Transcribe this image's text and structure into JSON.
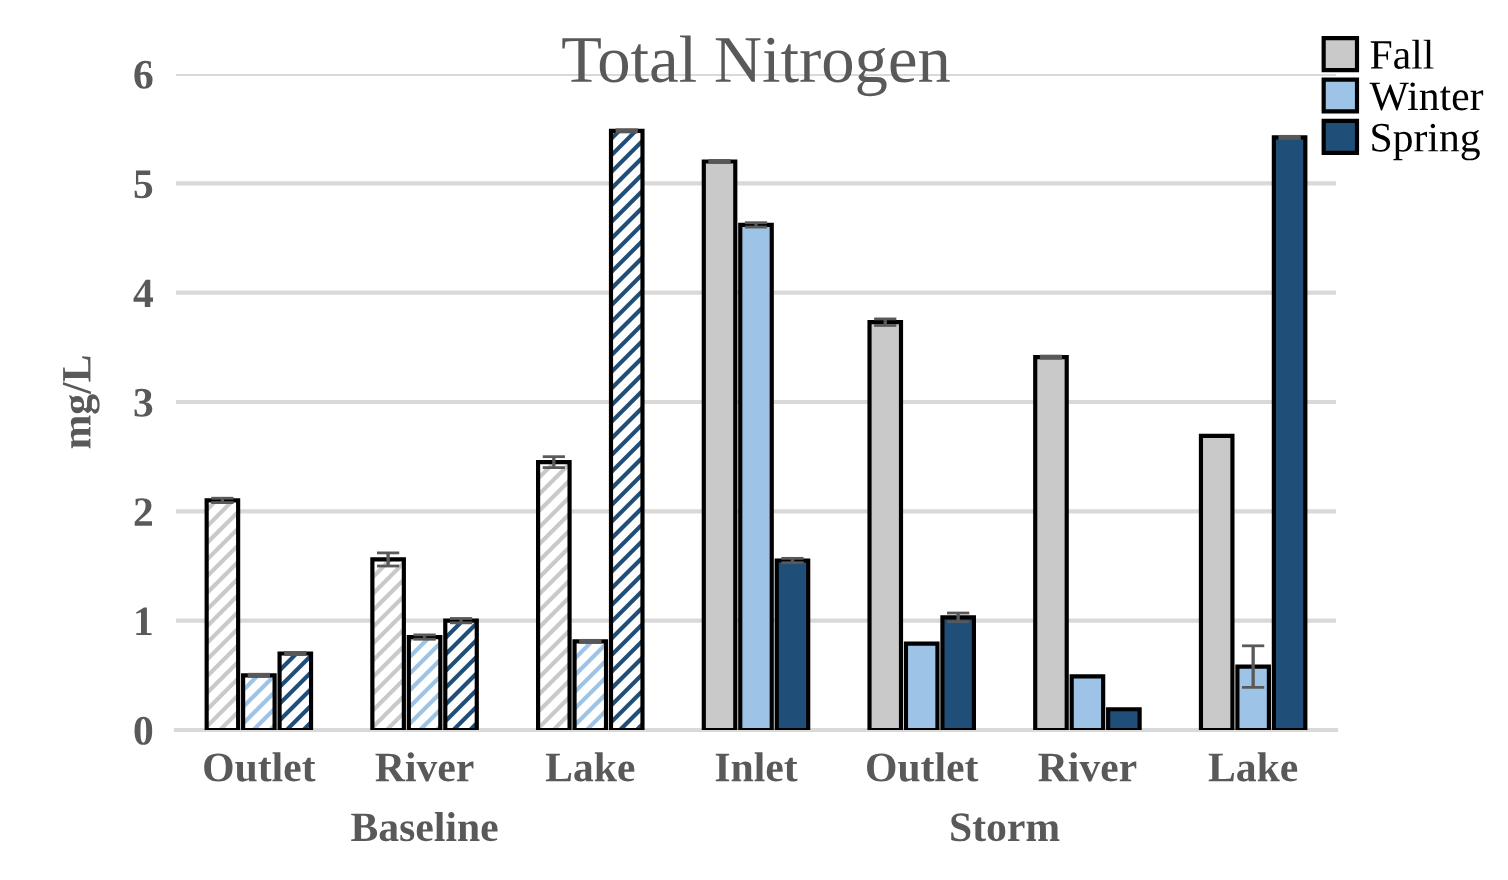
{
  "chart_data": {
    "type": "bar",
    "title": "Total Nitrogen",
    "ylabel": "mg/L",
    "categories": [
      "Outlet",
      "River",
      "Lake",
      "Inlet",
      "Outlet",
      "River",
      "Lake"
    ],
    "series": [
      {
        "name": "Fall",
        "color": "#c9c9c9",
        "values": [
          2.1,
          1.56,
          2.45,
          5.2,
          3.73,
          3.41,
          2.69
        ],
        "errors": [
          0.02,
          0.06,
          0.05,
          0.01,
          0.03,
          0.01,
          null
        ]
      },
      {
        "name": "Winter",
        "color": "#9dc3e6",
        "values": [
          0.5,
          0.85,
          0.81,
          4.62,
          0.79,
          0.49,
          0.58
        ],
        "errors": [
          0.01,
          0.02,
          0.01,
          0.02,
          null,
          null,
          0.19
        ]
      },
      {
        "name": "Spring",
        "color": "#1f4e79",
        "values": [
          0.7,
          1.0,
          5.48,
          1.55,
          1.03,
          0.19,
          5.42
        ],
        "errors": [
          0.01,
          0.02,
          0.01,
          0.02,
          0.04,
          null,
          0.01
        ]
      }
    ],
    "annotations": [
      "Baseline",
      "Storm"
    ],
    "ylim": [
      0,
      6
    ],
    "yticks": [
      0,
      1,
      2,
      3,
      4,
      5,
      6
    ],
    "grid": "y",
    "legend": "top right"
  }
}
